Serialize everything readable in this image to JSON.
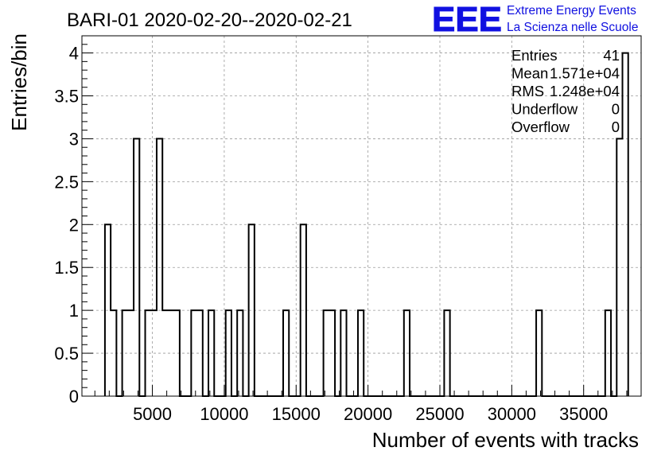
{
  "title": "BARI-01 2020-02-20--2020-02-21",
  "logo": {
    "mark": "EEE",
    "line1": "Extreme Energy Events",
    "line2": "La Scienza nelle Scuole",
    "color": "#1515e6"
  },
  "stats": [
    {
      "label": "Entries",
      "value": "41"
    },
    {
      "label": "Mean",
      "value": "1.571e+04"
    },
    {
      "label": "RMS",
      "value": "1.248e+04"
    },
    {
      "label": "Underflow",
      "value": "0"
    },
    {
      "label": "Overflow",
      "value": "0"
    }
  ],
  "chart_data": {
    "type": "histogram",
    "xlabel": "Number of events with tracks",
    "ylabel": "Entries/bin",
    "xlim": [
      100,
      39000
    ],
    "ylim": [
      0,
      4.2
    ],
    "grid": true,
    "xticks": [
      5000,
      10000,
      15000,
      20000,
      25000,
      30000,
      35000
    ],
    "xtick_labels": [
      "5000",
      "10000",
      "15000",
      "20000",
      "25000",
      "30000",
      "35000"
    ],
    "yticks": [
      0,
      0.5,
      1,
      1.5,
      2,
      2.5,
      3,
      3.5,
      4
    ],
    "ytick_labels": [
      "0",
      "0.5",
      "1",
      "1.5",
      "2",
      "2.5",
      "3",
      "3.5",
      "4"
    ],
    "line_color": "#000000",
    "bins": [
      {
        "x0": 1700,
        "x1": 2100,
        "count": 2
      },
      {
        "x0": 2100,
        "x1": 2500,
        "count": 1
      },
      {
        "x0": 2900,
        "x1": 3700,
        "count": 1
      },
      {
        "x0": 3700,
        "x1": 4100,
        "count": 3
      },
      {
        "x0": 4500,
        "x1": 5300,
        "count": 1
      },
      {
        "x0": 5300,
        "x1": 5700,
        "count": 3
      },
      {
        "x0": 5700,
        "x1": 6900,
        "count": 1
      },
      {
        "x0": 7700,
        "x1": 8500,
        "count": 1
      },
      {
        "x0": 8900,
        "x1": 9300,
        "count": 1
      },
      {
        "x0": 10100,
        "x1": 10500,
        "count": 1
      },
      {
        "x0": 10900,
        "x1": 11300,
        "count": 1
      },
      {
        "x0": 11700,
        "x1": 12100,
        "count": 2
      },
      {
        "x0": 14100,
        "x1": 14500,
        "count": 1
      },
      {
        "x0": 15300,
        "x1": 15700,
        "count": 2
      },
      {
        "x0": 16900,
        "x1": 17700,
        "count": 1
      },
      {
        "x0": 18100,
        "x1": 18500,
        "count": 1
      },
      {
        "x0": 19300,
        "x1": 19700,
        "count": 1
      },
      {
        "x0": 22500,
        "x1": 22900,
        "count": 1
      },
      {
        "x0": 25300,
        "x1": 25700,
        "count": 1
      },
      {
        "x0": 31700,
        "x1": 32100,
        "count": 1
      },
      {
        "x0": 36500,
        "x1": 36900,
        "count": 1
      },
      {
        "x0": 37300,
        "x1": 37700,
        "count": 3
      },
      {
        "x0": 37700,
        "x1": 38100,
        "count": 4
      }
    ]
  }
}
